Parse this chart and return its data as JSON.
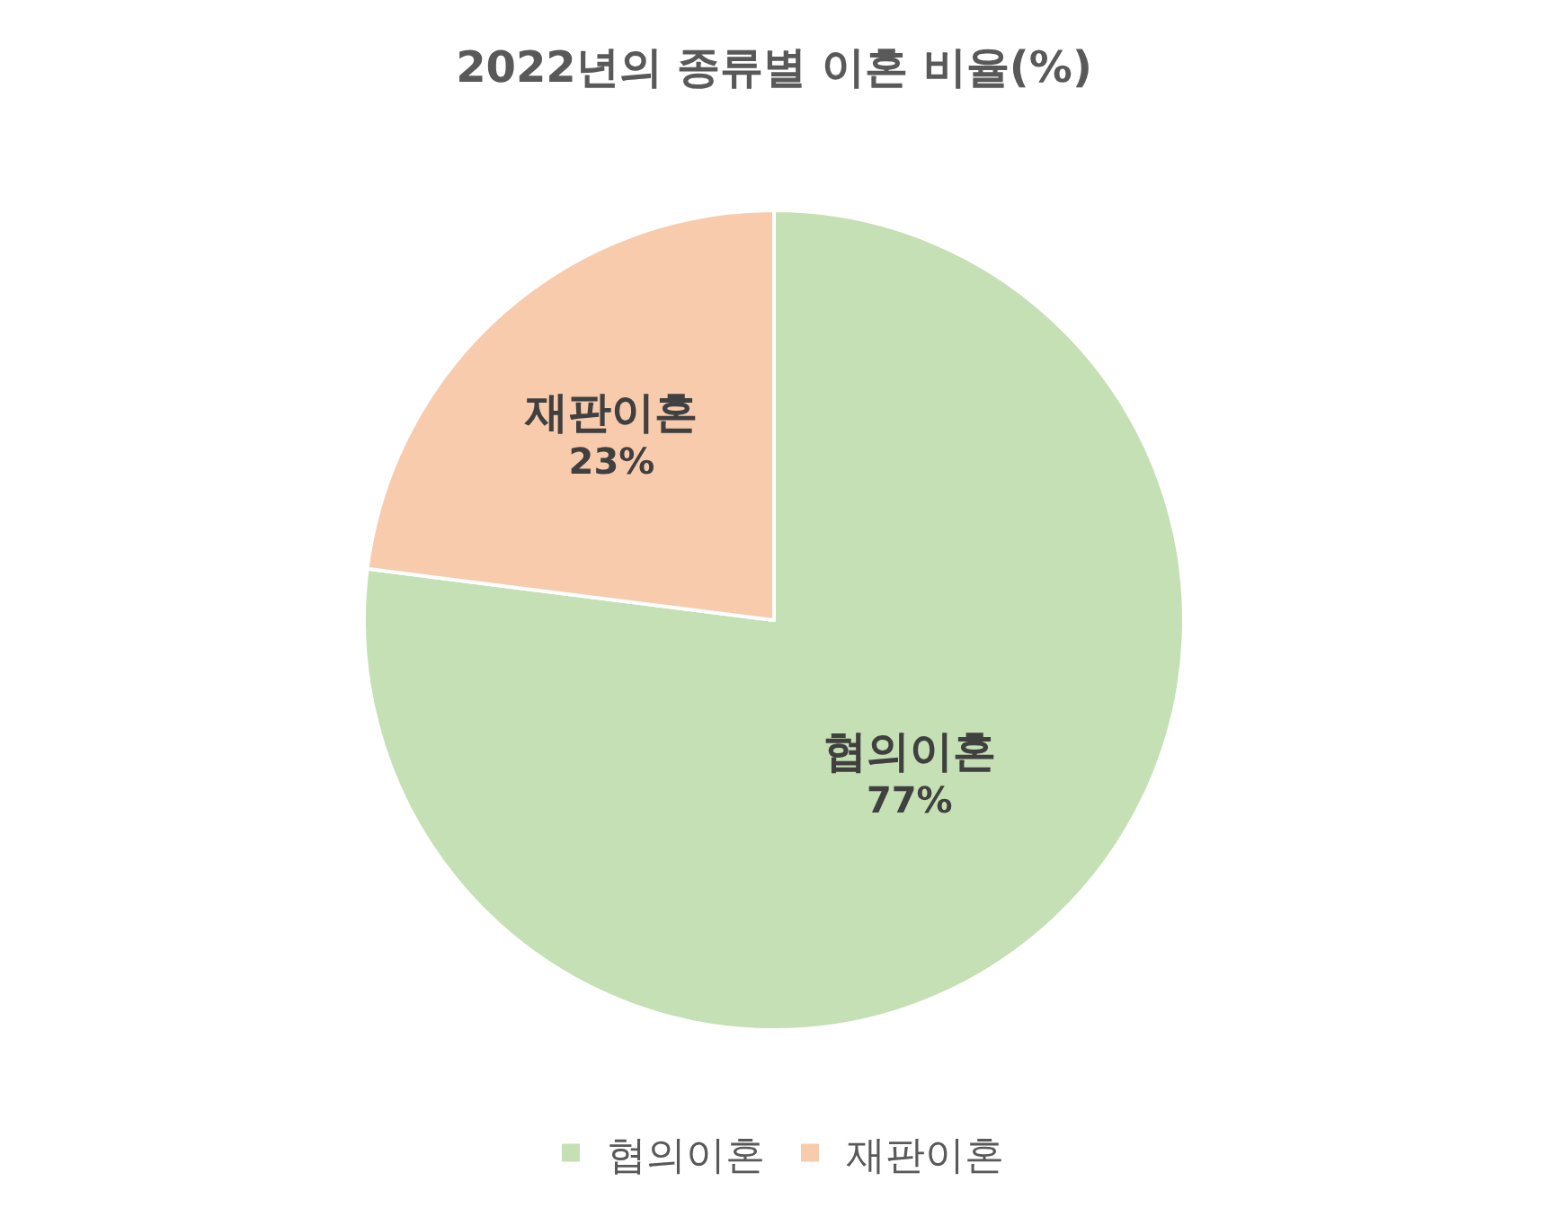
{
  "chart_data": {
    "type": "pie",
    "title": "2022년의 종류별 이혼 비율(%)",
    "categories": [
      "협의이혼",
      "재판이혼"
    ],
    "values": [
      77,
      23
    ],
    "value_labels": [
      "77%",
      "23%"
    ],
    "colors": [
      "#c5e0b4",
      "#f8cbad"
    ],
    "legend": "bottom"
  }
}
